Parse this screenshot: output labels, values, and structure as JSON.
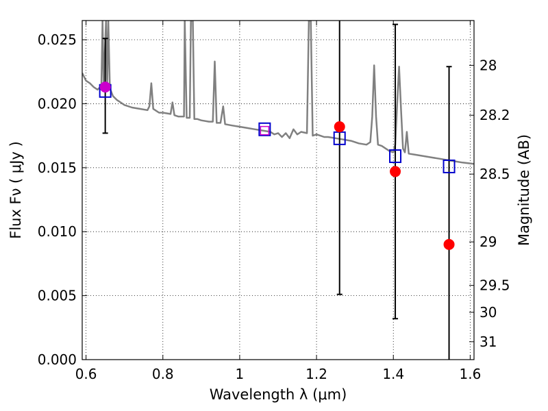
{
  "chart_data": {
    "type": "scatter",
    "xlabel": "Wavelength  λ (μm)",
    "ylabel": "Flux  Fν  ( μJy )",
    "y2label": "Magnitude (AB)",
    "xlim": [
      0.59,
      1.61
    ],
    "ylim": [
      0.0,
      0.0265
    ],
    "grid": true,
    "x_ticks": [
      0.6,
      0.8,
      1.0,
      1.2,
      1.4,
      1.6
    ],
    "x_tick_labels": [
      "0.6",
      "0.8",
      "1",
      "1.2",
      "1.4",
      "1.6"
    ],
    "y_ticks": [
      0.0,
      0.005,
      0.01,
      0.015,
      0.02,
      0.025
    ],
    "y_tick_labels": [
      "0.000",
      "0.005",
      "0.010",
      "0.015",
      "0.020",
      "0.025"
    ],
    "y2_ticks": [
      {
        "label": "28",
        "flux": 0.023
      },
      {
        "label": "28.2",
        "flux": 0.0191
      },
      {
        "label": "28.5",
        "flux": 0.0145
      },
      {
        "label": "29",
        "flux": 0.0092
      },
      {
        "label": "29.5",
        "flux": 0.0058
      },
      {
        "label": "30",
        "flux": 0.0037
      },
      {
        "label": "31",
        "flux": 0.0014
      }
    ],
    "colors": {
      "model": "#808080",
      "observed": "#ff0000",
      "model_photometry": "#0000cc",
      "error_bar": "#000000",
      "overlap_marker": "#cc00cc"
    },
    "series": [
      {
        "kind": "line",
        "points": [
          [
            0.59,
            0.0224
          ],
          [
            0.6,
            0.0218
          ],
          [
            0.61,
            0.0216
          ],
          [
            0.62,
            0.0213
          ],
          [
            0.63,
            0.0211
          ],
          [
            0.64,
            0.0214
          ],
          [
            0.643,
            0.0265
          ],
          [
            0.646,
            0.0215
          ],
          [
            0.652,
            0.0265
          ],
          [
            0.655,
            0.0213
          ],
          [
            0.658,
            0.0265
          ],
          [
            0.662,
            0.0212
          ],
          [
            0.67,
            0.0206
          ],
          [
            0.68,
            0.0203
          ],
          [
            0.69,
            0.0201
          ],
          [
            0.7,
            0.0199
          ],
          [
            0.72,
            0.0197
          ],
          [
            0.74,
            0.0196
          ],
          [
            0.76,
            0.0195
          ],
          [
            0.765,
            0.0198
          ],
          [
            0.77,
            0.0216
          ],
          [
            0.775,
            0.0196
          ],
          [
            0.79,
            0.0193
          ],
          [
            0.8,
            0.0193
          ],
          [
            0.82,
            0.0192
          ],
          [
            0.825,
            0.0201
          ],
          [
            0.83,
            0.0191
          ],
          [
            0.84,
            0.019
          ],
          [
            0.855,
            0.019
          ],
          [
            0.857,
            0.0265
          ],
          [
            0.862,
            0.0189
          ],
          [
            0.87,
            0.0189
          ],
          [
            0.873,
            0.0265
          ],
          [
            0.878,
            0.0265
          ],
          [
            0.882,
            0.0188
          ],
          [
            0.89,
            0.0188
          ],
          [
            0.9,
            0.0187
          ],
          [
            0.92,
            0.0186
          ],
          [
            0.93,
            0.0186
          ],
          [
            0.935,
            0.0233
          ],
          [
            0.94,
            0.0185
          ],
          [
            0.95,
            0.0185
          ],
          [
            0.957,
            0.0198
          ],
          [
            0.962,
            0.0184
          ],
          [
            0.98,
            0.0183
          ],
          [
            1.0,
            0.0182
          ],
          [
            1.02,
            0.0181
          ],
          [
            1.04,
            0.018
          ],
          [
            1.06,
            0.0179
          ],
          [
            1.08,
            0.0178
          ],
          [
            1.09,
            0.0176
          ],
          [
            1.1,
            0.0177
          ],
          [
            1.11,
            0.0174
          ],
          [
            1.12,
            0.0177
          ],
          [
            1.13,
            0.0173
          ],
          [
            1.14,
            0.018
          ],
          [
            1.15,
            0.0176
          ],
          [
            1.16,
            0.0178
          ],
          [
            1.175,
            0.0177
          ],
          [
            1.18,
            0.0265
          ],
          [
            1.185,
            0.0265
          ],
          [
            1.19,
            0.0175
          ],
          [
            1.2,
            0.0176
          ],
          [
            1.21,
            0.0175
          ],
          [
            1.22,
            0.0174
          ],
          [
            1.23,
            0.0174
          ],
          [
            1.25,
            0.0173
          ],
          [
            1.27,
            0.0172
          ],
          [
            1.29,
            0.0171
          ],
          [
            1.31,
            0.0169
          ],
          [
            1.33,
            0.0168
          ],
          [
            1.34,
            0.017
          ],
          [
            1.345,
            0.019
          ],
          [
            1.35,
            0.023
          ],
          [
            1.355,
            0.019
          ],
          [
            1.36,
            0.0168
          ],
          [
            1.37,
            0.0167
          ],
          [
            1.38,
            0.0165
          ],
          [
            1.39,
            0.0163
          ],
          [
            1.4,
            0.0162
          ],
          [
            1.405,
            0.0168
          ],
          [
            1.41,
            0.02
          ],
          [
            1.415,
            0.0229
          ],
          [
            1.42,
            0.0195
          ],
          [
            1.425,
            0.0165
          ],
          [
            1.43,
            0.0162
          ],
          [
            1.435,
            0.0178
          ],
          [
            1.44,
            0.0161
          ],
          [
            1.46,
            0.016
          ],
          [
            1.48,
            0.0159
          ],
          [
            1.5,
            0.0158
          ],
          [
            1.52,
            0.0157
          ],
          [
            1.54,
            0.0156
          ],
          [
            1.56,
            0.0155
          ],
          [
            1.58,
            0.0154
          ],
          [
            1.61,
            0.0153
          ]
        ]
      },
      {
        "kind": "observed",
        "points": [
          {
            "x": 0.65,
            "y": 0.0213,
            "yerr_low": 0.0177,
            "yerr_high": 0.0251
          },
          {
            "x": 1.065,
            "y": 0.0179
          },
          {
            "x": 1.26,
            "y": 0.0182,
            "yerr_low": 0.0051,
            "yerr_high": 0.0265
          },
          {
            "x": 1.405,
            "y": 0.0147,
            "yerr_low": 0.0032,
            "yerr_high": 0.0262
          },
          {
            "x": 1.545,
            "y": 0.009,
            "yerr_low": 0.0,
            "yerr_high": 0.0229
          }
        ]
      },
      {
        "kind": "model_photometry",
        "points": [
          {
            "x": 0.65,
            "y": 0.021
          },
          {
            "x": 1.065,
            "y": 0.018
          },
          {
            "x": 1.26,
            "y": 0.0173
          },
          {
            "x": 1.405,
            "y": 0.0159
          },
          {
            "x": 1.545,
            "y": 0.0151
          }
        ]
      }
    ]
  }
}
